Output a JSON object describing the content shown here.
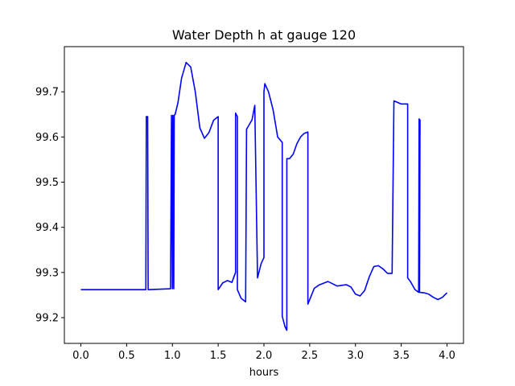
{
  "chart_data": {
    "type": "line",
    "title": "Water Depth h at gauge 120",
    "xlabel": "hours",
    "ylabel": "",
    "xlim": [
      -0.18,
      4.18
    ],
    "ylim": [
      99.143,
      99.8
    ],
    "xticks": [
      0.0,
      0.5,
      1.0,
      1.5,
      2.0,
      2.5,
      3.0,
      3.5,
      4.0
    ],
    "xtick_labels": [
      "0.0",
      "0.5",
      "1.0",
      "1.5",
      "2.0",
      "2.5",
      "3.0",
      "3.5",
      "4.0"
    ],
    "yticks": [
      99.2,
      99.3,
      99.4,
      99.5,
      99.6,
      99.7
    ],
    "ytick_labels": [
      "99.2",
      "99.3",
      "99.4",
      "99.5",
      "99.6",
      "99.7"
    ],
    "grid": false,
    "legend": "none",
    "series": [
      {
        "color": "#0000ff",
        "x": [
          0.0,
          0.5,
          0.71,
          0.715,
          0.73,
          0.735,
          0.98,
          0.99,
          1.0,
          1.005,
          1.015,
          1.02,
          1.03,
          1.06,
          1.1,
          1.15,
          1.2,
          1.25,
          1.3,
          1.35,
          1.4,
          1.45,
          1.5,
          1.5,
          1.55,
          1.6,
          1.65,
          1.69,
          1.69,
          1.71,
          1.71,
          1.75,
          1.8,
          1.81,
          1.81,
          1.87,
          1.9,
          1.93,
          1.93,
          1.97,
          2.0,
          2.0,
          2.01,
          2.05,
          2.1,
          2.15,
          2.2,
          2.2,
          2.23,
          2.25,
          2.25,
          2.28,
          2.32,
          2.36,
          2.4,
          2.44,
          2.48,
          2.48,
          2.5,
          2.55,
          2.6,
          2.7,
          2.8,
          2.9,
          2.95,
          3.0,
          3.05,
          3.1,
          3.15,
          3.2,
          3.25,
          3.3,
          3.35,
          3.4,
          3.42,
          3.42,
          3.5,
          3.57,
          3.57,
          3.6,
          3.65,
          3.69,
          3.695,
          3.7,
          3.705,
          3.7,
          3.75,
          3.8,
          3.85,
          3.9,
          3.95,
          4.0
        ],
        "y": [
          99.262,
          99.262,
          99.262,
          99.645,
          99.645,
          99.262,
          99.264,
          99.648,
          99.264,
          99.648,
          99.264,
          99.648,
          99.65,
          99.675,
          99.73,
          99.765,
          99.755,
          99.7,
          99.62,
          99.597,
          99.61,
          99.637,
          99.645,
          99.262,
          99.277,
          99.282,
          99.278,
          99.3,
          99.653,
          99.645,
          99.262,
          99.243,
          99.235,
          99.617,
          99.617,
          99.638,
          99.67,
          99.288,
          99.288,
          99.32,
          99.333,
          99.7,
          99.718,
          99.7,
          99.66,
          99.6,
          99.588,
          99.203,
          99.18,
          99.172,
          99.552,
          99.552,
          99.562,
          99.585,
          99.6,
          99.608,
          99.611,
          99.23,
          99.24,
          99.265,
          99.272,
          99.28,
          99.27,
          99.273,
          99.268,
          99.252,
          99.248,
          99.26,
          99.29,
          99.313,
          99.315,
          99.308,
          99.298,
          99.298,
          99.68,
          99.68,
          99.673,
          99.673,
          99.288,
          99.28,
          99.262,
          99.256,
          99.64,
          99.256,
          99.638,
          99.256,
          99.255,
          99.252,
          99.245,
          99.24,
          99.245,
          99.255
        ]
      }
    ]
  }
}
